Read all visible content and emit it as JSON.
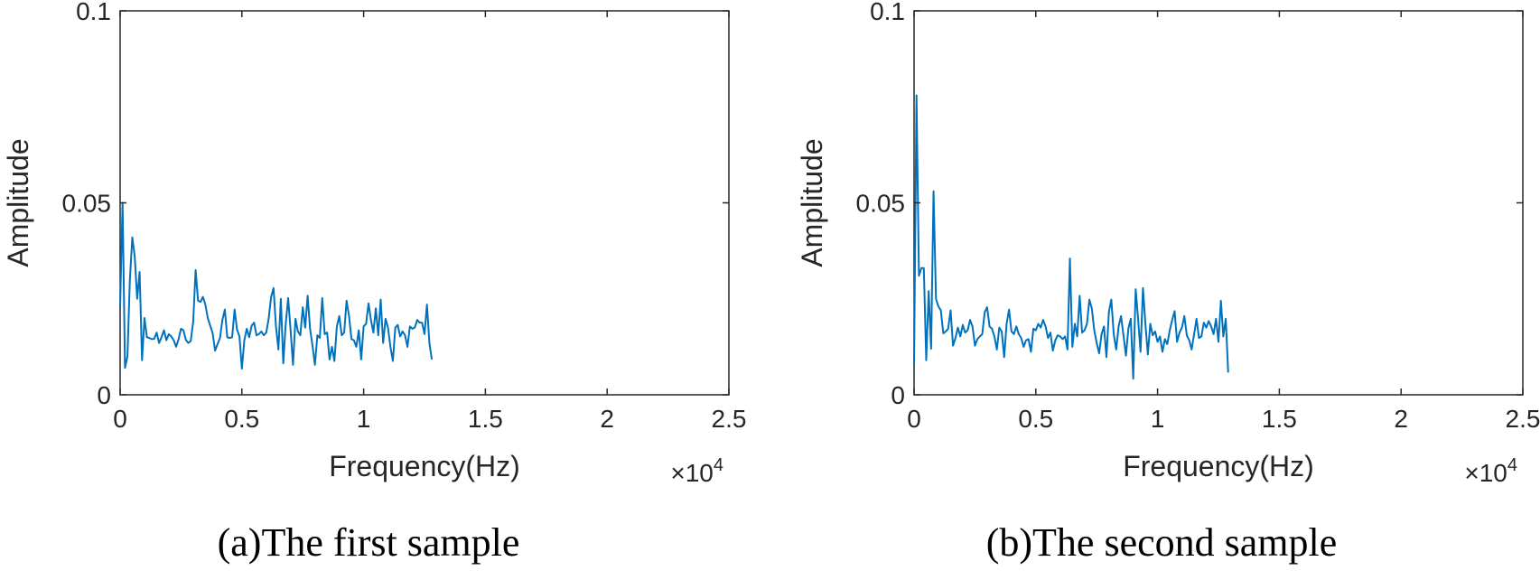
{
  "series_color": "#0072BD",
  "axis_color": "#262626",
  "chart_data": [
    {
      "type": "line",
      "caption": "(a)The first sample",
      "xlabel": "Frequency(Hz)",
      "ylabel": "Amplitude",
      "x_exponent_label": "×10",
      "x_exponent_power": "4",
      "xlim": [
        0,
        2.5
      ],
      "ylim": [
        0,
        0.1
      ],
      "xticks": [
        0,
        0.5,
        1,
        1.5,
        2,
        2.5
      ],
      "xtick_labels": [
        "0",
        "0.5",
        "1",
        "1.5",
        "2",
        "2.5"
      ],
      "yticks": [
        0,
        0.05,
        0.1
      ],
      "ytick_labels": [
        "0",
        "0.05",
        "0.1"
      ],
      "x_step": 0.01,
      "values": [
        0.023,
        0.05,
        0.007,
        0.01,
        0.03,
        0.041,
        0.036,
        0.025,
        0.032,
        0.009,
        0.02,
        0.015,
        0.0148,
        0.0145,
        0.0146,
        0.0162,
        0.0135,
        0.015,
        0.0168,
        0.0142,
        0.0158,
        0.0152,
        0.0142,
        0.0125,
        0.0145,
        0.0172,
        0.0168,
        0.0143,
        0.0135,
        0.014,
        0.019,
        0.0325,
        0.0245,
        0.0242,
        0.0255,
        0.0235,
        0.02,
        0.018,
        0.016,
        0.0115,
        0.0132,
        0.0148,
        0.0195,
        0.0222,
        0.015,
        0.0148,
        0.015,
        0.0222,
        0.017,
        0.0152,
        0.0068,
        0.0142,
        0.0172,
        0.015,
        0.018,
        0.0188,
        0.0155,
        0.0158,
        0.0165,
        0.0155,
        0.0162,
        0.0198,
        0.0255,
        0.0278,
        0.0178,
        0.0118,
        0.025,
        0.0082,
        0.0185,
        0.0252,
        0.0168,
        0.0078,
        0.0198,
        0.0165,
        0.0155,
        0.0228,
        0.0175,
        0.0258,
        0.0172,
        0.0128,
        0.0078,
        0.0155,
        0.0148,
        0.0252,
        0.0158,
        0.0162,
        0.0092,
        0.0125,
        0.0088,
        0.0178,
        0.0205,
        0.0155,
        0.0162,
        0.0245,
        0.0205,
        0.0145,
        0.0142,
        0.0125,
        0.0168,
        0.0092,
        0.0178,
        0.0185,
        0.0238,
        0.0195,
        0.0162,
        0.0225,
        0.0155,
        0.0248,
        0.0135,
        0.0198,
        0.0175,
        0.0125,
        0.0088,
        0.0175,
        0.0182,
        0.0152,
        0.0165,
        0.0155,
        0.0125,
        0.0178,
        0.0172,
        0.0175,
        0.0195,
        0.0188,
        0.0188,
        0.0158,
        0.0235,
        0.0135,
        0.0092
      ]
    },
    {
      "type": "line",
      "caption": "(b)The second sample",
      "xlabel": "Frequency(Hz)",
      "ylabel": "Amplitude",
      "x_exponent_label": "×10",
      "x_exponent_power": "4",
      "xlim": [
        0,
        2.5
      ],
      "ylim": [
        0,
        0.1
      ],
      "xticks": [
        0,
        0.5,
        1,
        1.5,
        2,
        2.5
      ],
      "xtick_labels": [
        "0",
        "0.5",
        "1",
        "1.5",
        "2",
        "2.5"
      ],
      "yticks": [
        0,
        0.05,
        0.1
      ],
      "ytick_labels": [
        "0",
        "0.05",
        "0.1"
      ],
      "x_step": 0.01,
      "values": [
        0.008,
        0.078,
        0.031,
        0.033,
        0.033,
        0.009,
        0.027,
        0.012,
        0.053,
        0.025,
        0.023,
        0.022,
        0.016,
        0.0165,
        0.0172,
        0.022,
        0.0128,
        0.0148,
        0.0175,
        0.0152,
        0.0182,
        0.0162,
        0.0168,
        0.0195,
        0.0178,
        0.0128,
        0.0145,
        0.0152,
        0.0158,
        0.0215,
        0.0228,
        0.0178,
        0.0172,
        0.0152,
        0.0118,
        0.0175,
        0.0165,
        0.0098,
        0.0185,
        0.0222,
        0.0165,
        0.0158,
        0.0178,
        0.0158,
        0.0148,
        0.0125,
        0.0142,
        0.0145,
        0.0112,
        0.0172,
        0.0168,
        0.0185,
        0.0175,
        0.0195,
        0.0178,
        0.0148,
        0.0162,
        0.0115,
        0.0142,
        0.0155,
        0.0152,
        0.0145,
        0.0152,
        0.0118,
        0.0355,
        0.0125,
        0.0185,
        0.0152,
        0.0258,
        0.0162,
        0.0168,
        0.0185,
        0.0248,
        0.0225,
        0.0168,
        0.0135,
        0.0108,
        0.0158,
        0.0178,
        0.0098,
        0.0215,
        0.0248,
        0.0158,
        0.0118,
        0.0178,
        0.0205,
        0.0155,
        0.0102,
        0.0172,
        0.0198,
        0.0042,
        0.0275,
        0.0198,
        0.0112,
        0.0278,
        0.0185,
        0.0105,
        0.0185,
        0.0155,
        0.0165,
        0.0138,
        0.0152,
        0.0112,
        0.0145,
        0.0132,
        0.0168,
        0.0195,
        0.0218,
        0.0138,
        0.0162,
        0.0175,
        0.0205,
        0.0155,
        0.0142,
        0.0118,
        0.0158,
        0.0198,
        0.0148,
        0.0152,
        0.0188,
        0.0175,
        0.0192,
        0.0178,
        0.0158,
        0.0198,
        0.0138,
        0.0245,
        0.0152,
        0.0198,
        0.0058
      ]
    }
  ]
}
